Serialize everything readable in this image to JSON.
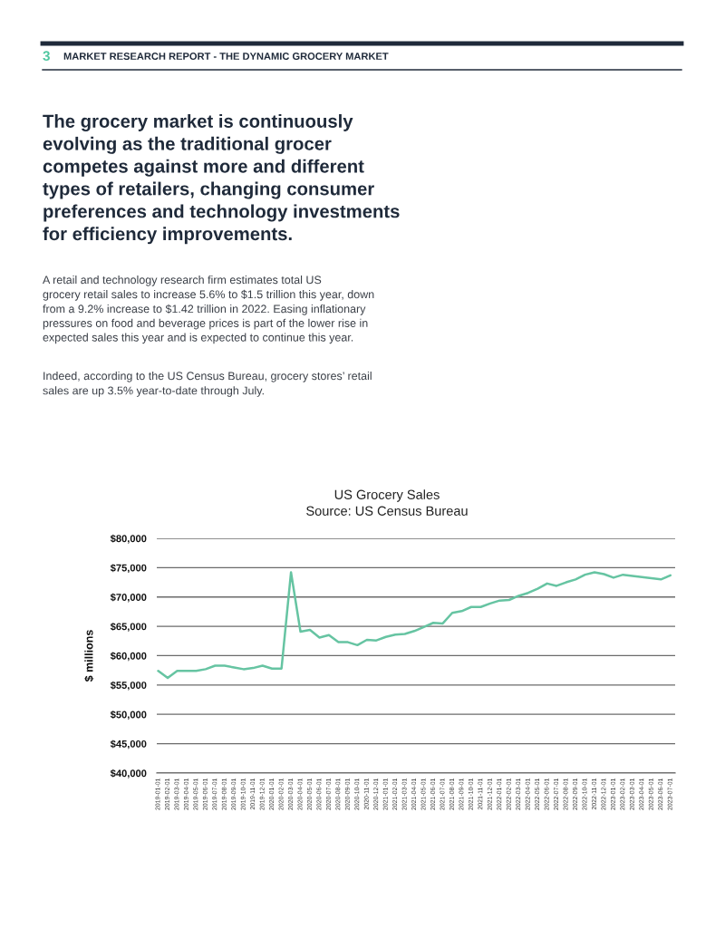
{
  "chart_data": {
    "type": "line",
    "title": "US Grocery Sales",
    "subtitle": "Source: US Census Bureau",
    "ylabel": "$ millions",
    "annotations": [
      "3",
      "MARKET RESEARCH REPORT - THE DYNAMIC GROCERY MARKET",
      "The grocery market is continuously\nevolving as the traditional grocer\ncompetes against more and different\ntypes of retailers, changing consumer\npreferences and technology investments\nfor efficiency improvements.",
      "A retail and technology research firm estimates total US\ngrocery retail sales to increase 5.6% to $1.5 trillion this year, down\nfrom a 9.2% increase to $1.42 trillion in 2022. Easing inflationary\npressures on food and beverage prices is part of the lower rise in\nexpected sales this year and is expected to continue this year.",
      "Indeed, according to the US Census Bureau, grocery stores’ retail\nsales are up 3.5% year-to-date through July."
    ],
    "categories": [
      "2019-01-01",
      "2019-02-01",
      "2019-03-01",
      "2019-04-01",
      "2019-05-01",
      "2019-06-01",
      "2019-07-01",
      "2019-08-01",
      "2019-09-01",
      "2019-10-01",
      "2019-11-01",
      "2019-12-01",
      "2020-01-01",
      "2020-02-01",
      "2020-03-01",
      "2020-04-01",
      "2020-05-01",
      "2020-06-01",
      "2020-07-01",
      "2020-08-01",
      "2020-09-01",
      "2020-10-01",
      "2020-11-01",
      "2020-12-01",
      "2021-01-01",
      "2021-02-01",
      "2021-03-01",
      "2021-04-01",
      "2021-05-01",
      "2021-06-01",
      "2021-07-01",
      "2021-08-01",
      "2021-09-01",
      "2021-10-01",
      "2021-11-01",
      "2021-12-01",
      "2022-01-01",
      "2022-02-01",
      "2022-03-01",
      "2022-04-01",
      "2022-05-01",
      "2022-06-01",
      "2022-07-01",
      "2022-08-01",
      "2022-09-01",
      "2022-10-01",
      "2022-11-01",
      "2022-12-01",
      "2023-01-01",
      "2023-02-01",
      "2023-03-01",
      "2023-04-01",
      "2023-05-01",
      "2023-06-01",
      "2023-07-01"
    ],
    "values": [
      57400,
      56200,
      57400,
      57400,
      57400,
      57700,
      58300,
      58300,
      58000,
      57700,
      57900,
      58300,
      57800,
      57800,
      74200,
      64100,
      64400,
      63100,
      63500,
      62300,
      62300,
      61800,
      62700,
      62600,
      63200,
      63600,
      63700,
      64200,
      64900,
      65600,
      65500,
      67300,
      67600,
      68300,
      68300,
      68900,
      69400,
      69500,
      70200,
      70700,
      71400,
      72300,
      71900,
      72500,
      73000,
      73800,
      74200,
      73900,
      73300,
      73800,
      73600,
      73400,
      73200,
      73000,
      73700
    ],
    "color": "#66c4a2",
    "ylim": [
      40000,
      80000
    ],
    "yticks": [
      {
        "value": 40000,
        "label": "$40,000"
      },
      {
        "value": 45000,
        "label": "$45,000"
      },
      {
        "value": 50000,
        "label": "$50,000"
      },
      {
        "value": 55000,
        "label": "$55,000"
      },
      {
        "value": 60000,
        "label": "$60,000"
      },
      {
        "value": 65000,
        "label": "$65,000"
      },
      {
        "value": 70000,
        "label": "$70,000"
      },
      {
        "value": 75000,
        "label": "$75,000"
      },
      {
        "value": 80000,
        "label": "$80,000"
      }
    ],
    "grid": "y"
  }
}
